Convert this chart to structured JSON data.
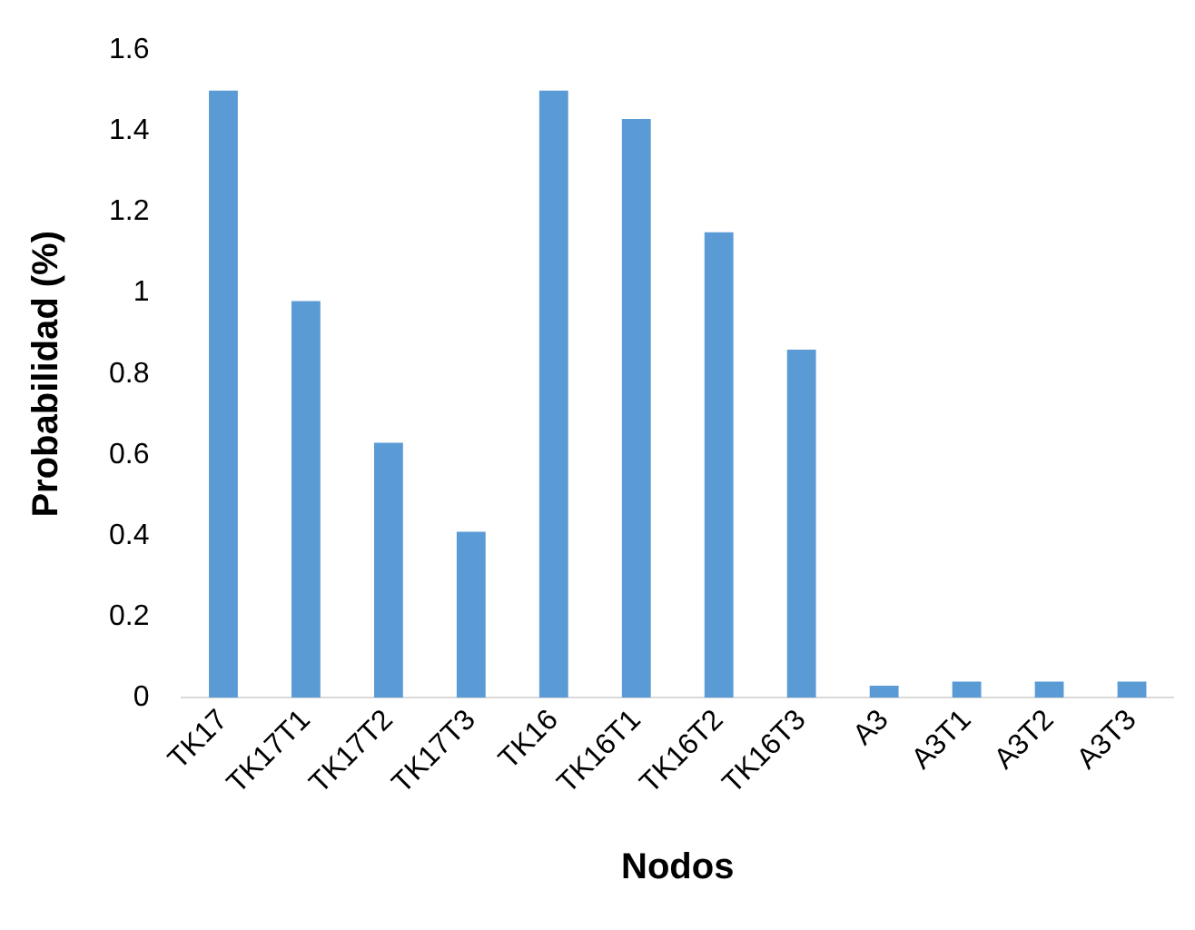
{
  "chart_data": {
    "type": "bar",
    "xlabel": "Nodos",
    "ylabel": "Probabilidad (%)",
    "categories": [
      "TK17",
      "TK17T1",
      "TK17T2",
      "TK17T3",
      "TK16",
      "TK16T1",
      "TK16T2",
      "TK16T3",
      "A3",
      "A3T1",
      "A3T2",
      "A3T3"
    ],
    "values": [
      1.5,
      0.98,
      0.63,
      0.41,
      1.5,
      1.43,
      1.15,
      0.86,
      0.03,
      0.04,
      0.04,
      0.04
    ],
    "color": "#5b9bd5",
    "ylim": [
      0,
      1.6
    ],
    "yticks": [
      0,
      0.2,
      0.4,
      0.6,
      0.8,
      1,
      1.2,
      1.4,
      1.6
    ],
    "grid": false,
    "legend": false
  }
}
